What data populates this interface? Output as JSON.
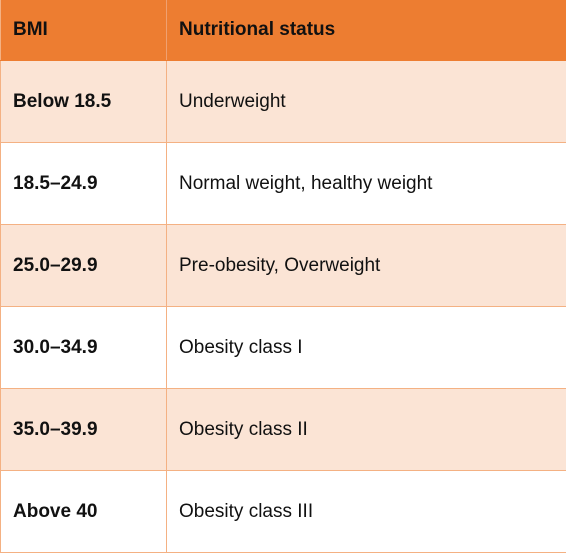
{
  "table": {
    "headers": [
      "BMI",
      "Nutritional status"
    ],
    "rows": [
      {
        "bmi": "Below 18.5",
        "status": "Underweight"
      },
      {
        "bmi": "18.5–24.9",
        "status": "Normal weight, healthy weight"
      },
      {
        "bmi": "25.0–29.9",
        "status": "Pre-obesity, Overweight"
      },
      {
        "bmi": "30.0–34.9",
        "status": "Obesity class I"
      },
      {
        "bmi": "35.0–39.9",
        "status": "Obesity class II"
      },
      {
        "bmi": "Above 40",
        "status": "Obesity class III"
      }
    ]
  },
  "colors": {
    "header_background": "#ed7d31",
    "banded_row_background": "#fbe4d5",
    "plain_row_background": "#ffffff",
    "border": "#f4b183"
  }
}
